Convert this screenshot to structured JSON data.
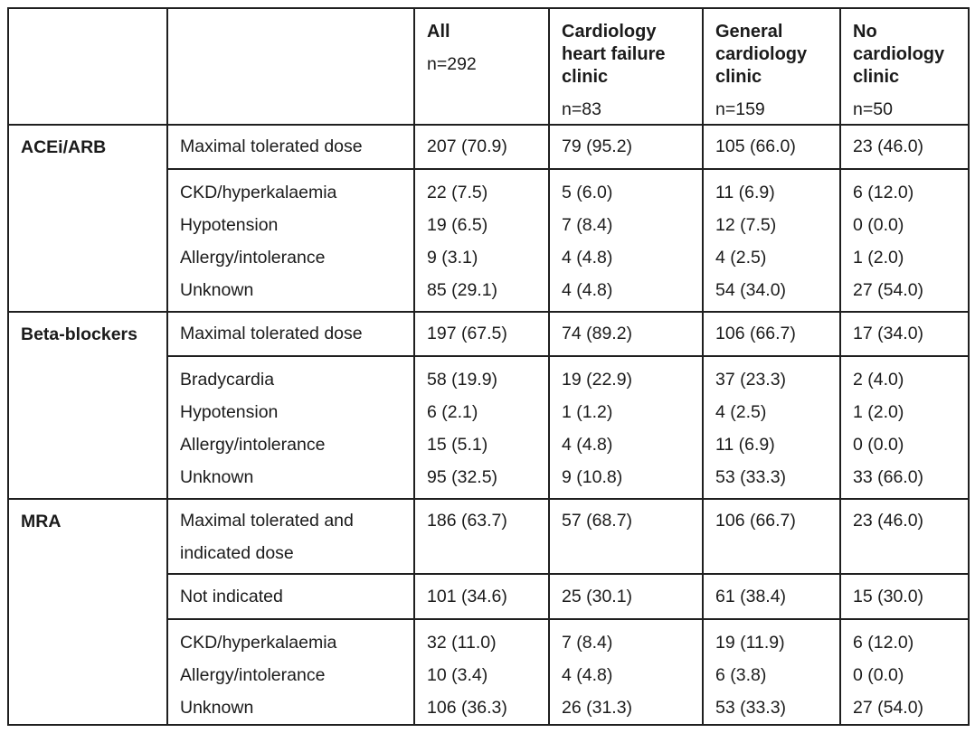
{
  "table": {
    "columns": [
      {
        "title": "All",
        "n": "n=292"
      },
      {
        "title": "Cardiology heart failure clinic",
        "n": "n=83"
      },
      {
        "title": "General cardiology clinic",
        "n": "n=159"
      },
      {
        "title": "No cardiology clinic",
        "n": "n=50"
      }
    ],
    "groups": [
      {
        "name": "ACEi/ARB",
        "dose_row": {
          "label": "Maximal tolerated dose",
          "values": [
            "207 (70.9)",
            "79 (95.2)",
            "105 (66.0)",
            "23 (46.0)"
          ]
        },
        "reasons": [
          {
            "label": "CKD/hyperkalaemia",
            "values": [
              "22 (7.5)",
              "5 (6.0)",
              "11 (6.9)",
              "6 (12.0)"
            ]
          },
          {
            "label": "Hypotension",
            "values": [
              "19 (6.5)",
              "7 (8.4)",
              "12 (7.5)",
              "0 (0.0)"
            ]
          },
          {
            "label": "Allergy/intolerance",
            "values": [
              "9 (3.1)",
              "4 (4.8)",
              "4 (2.5)",
              "1 (2.0)"
            ]
          },
          {
            "label": "Unknown",
            "values": [
              "85 (29.1)",
              "4 (4.8)",
              "54 (34.0)",
              "27 (54.0)"
            ]
          }
        ]
      },
      {
        "name": "Beta-blockers",
        "dose_row": {
          "label": "Maximal tolerated dose",
          "values": [
            "197 (67.5)",
            "74 (89.2)",
            "106 (66.7)",
            "17 (34.0)"
          ]
        },
        "reasons": [
          {
            "label": "Bradycardia",
            "values": [
              "58 (19.9)",
              "19 (22.9)",
              "37 (23.3)",
              "2 (4.0)"
            ]
          },
          {
            "label": "Hypotension",
            "values": [
              "6 (2.1)",
              "1 (1.2)",
              "4 (2.5)",
              "1 (2.0)"
            ]
          },
          {
            "label": "Allergy/intolerance",
            "values": [
              "15 (5.1)",
              "4 (4.8)",
              "11 (6.9)",
              "0 (0.0)"
            ]
          },
          {
            "label": "Unknown",
            "values": [
              "95 (32.5)",
              "9 (10.8)",
              "53 (33.3)",
              "33 (66.0)"
            ]
          }
        ]
      },
      {
        "name": "MRA",
        "dose_row": {
          "label": "Maximal tolerated and indicated dose",
          "values": [
            "186 (63.7)",
            "57 (68.7)",
            "106 (66.7)",
            "23 (46.0)"
          ]
        },
        "extra_row": {
          "label": "Not indicated",
          "values": [
            "101 (34.6)",
            "25 (30.1)",
            "61 (38.4)",
            "15 (30.0)"
          ]
        },
        "reasons": [
          {
            "label": "CKD/hyperkalaemia",
            "values": [
              "32 (11.0)",
              "7 (8.4)",
              "19 (11.9)",
              "6 (12.0)"
            ]
          },
          {
            "label": "Allergy/intolerance",
            "values": [
              "10 (3.4)",
              "4 (4.8)",
              "6 (3.8)",
              "0 (0.0)"
            ]
          },
          {
            "label": "Unknown",
            "values": [
              "106 (36.3)",
              "26 (31.3)",
              "53 (33.3)",
              "27 (54.0)"
            ]
          }
        ]
      }
    ]
  }
}
